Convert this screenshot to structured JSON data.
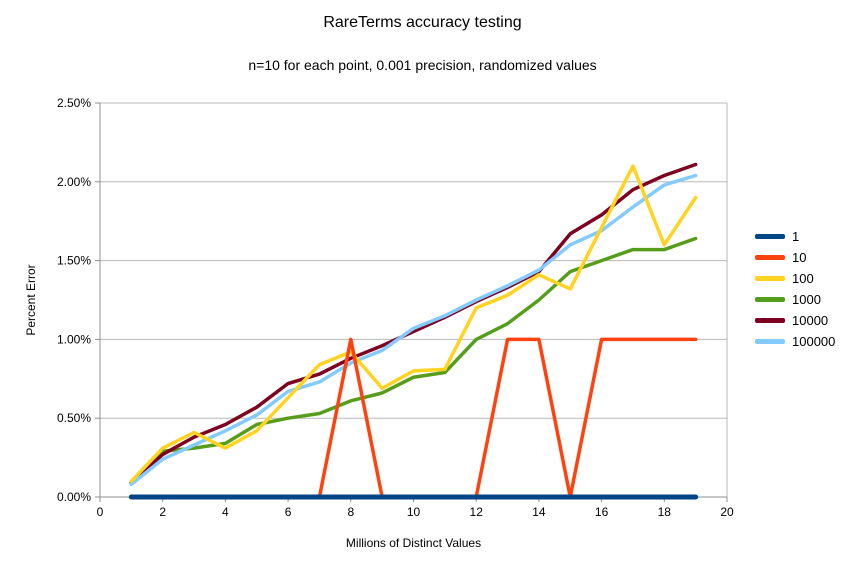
{
  "page": {
    "background": "#ffffff"
  },
  "chart_data": {
    "type": "line",
    "title": "RareTerms accuracy testing",
    "subtitle": "n=10 for each point, 0.001 precision, randomized values",
    "xlabel": "Millions of Distinct Values",
    "ylabel": "Percent Error",
    "xlim": [
      0,
      20
    ],
    "ylim": [
      0,
      2.5
    ],
    "grid": "horizontal",
    "grid_color": "#b8b8b8",
    "axis_color": "#8f8f8f",
    "text_color": "#000000",
    "legend_position": "right",
    "x_ticks": [
      0,
      2,
      4,
      6,
      8,
      10,
      12,
      14,
      16,
      18,
      20
    ],
    "y_ticks": [
      {
        "value": 0.0,
        "label": "0.00%"
      },
      {
        "value": 0.5,
        "label": "0.50%"
      },
      {
        "value": 1.0,
        "label": "1.00%"
      },
      {
        "value": 1.5,
        "label": "1.50%"
      },
      {
        "value": 2.0,
        "label": "2.00%"
      },
      {
        "value": 2.5,
        "label": "2.50%"
      }
    ],
    "x": [
      1,
      2,
      3,
      4,
      5,
      6,
      7,
      8,
      9,
      10,
      11,
      12,
      13,
      14,
      15,
      16,
      17,
      18,
      19
    ],
    "series": [
      {
        "name": "1",
        "color": "#004586",
        "values": [
          0,
          0,
          0,
          0,
          0,
          0,
          0,
          0,
          0,
          0,
          0,
          0,
          0,
          0,
          0,
          0,
          0,
          0,
          0
        ]
      },
      {
        "name": "10",
        "color": "#FF420E",
        "values": [
          0,
          0,
          0,
          0,
          0,
          0,
          0,
          1.0,
          0,
          0,
          0,
          0,
          1.0,
          1.0,
          0,
          1.0,
          1.0,
          1.0,
          1.0
        ]
      },
      {
        "name": "100",
        "color": "#FFD320",
        "values": [
          0.1,
          0.31,
          0.41,
          0.31,
          0.42,
          0.63,
          0.84,
          0.92,
          0.69,
          0.8,
          0.81,
          1.2,
          1.28,
          1.41,
          1.32,
          1.71,
          2.1,
          1.6,
          1.9
        ]
      },
      {
        "name": "1000",
        "color": "#579D1C",
        "values": [
          0.09,
          0.29,
          0.31,
          0.34,
          0.46,
          0.5,
          0.53,
          0.61,
          0.66,
          0.76,
          0.79,
          1.0,
          1.1,
          1.25,
          1.43,
          1.5,
          1.57,
          1.57,
          1.64
        ]
      },
      {
        "name": "10000",
        "color": "#7E0021",
        "values": [
          0.09,
          0.27,
          0.38,
          0.46,
          0.57,
          0.72,
          0.78,
          0.88,
          0.96,
          1.05,
          1.14,
          1.24,
          1.33,
          1.43,
          1.67,
          1.79,
          1.95,
          2.04,
          2.11
        ]
      },
      {
        "name": "100000",
        "color": "#83CAFF",
        "values": [
          0.08,
          0.24,
          0.33,
          0.42,
          0.52,
          0.67,
          0.73,
          0.85,
          0.93,
          1.07,
          1.15,
          1.25,
          1.34,
          1.44,
          1.6,
          1.69,
          1.84,
          1.98,
          2.04
        ]
      }
    ],
    "draw_order": [
      "1000",
      "10000",
      "100000",
      "100",
      "10",
      "1"
    ],
    "legend": [
      {
        "label": "1",
        "color": "#004586"
      },
      {
        "label": "10",
        "color": "#FF420E"
      },
      {
        "label": "100",
        "color": "#FFD320"
      },
      {
        "label": "1000",
        "color": "#579D1C"
      },
      {
        "label": "10000",
        "color": "#7E0021"
      },
      {
        "label": "100000",
        "color": "#83CAFF"
      }
    ]
  }
}
